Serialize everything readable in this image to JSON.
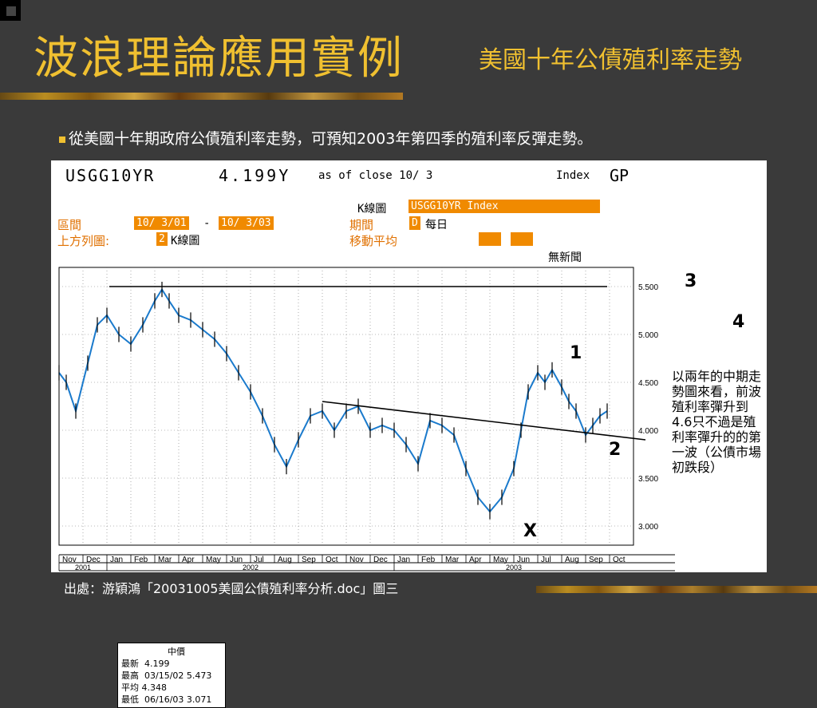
{
  "slide": {
    "title": "波浪理論應用實例",
    "subtitle": "美國十年公債殖利率走勢",
    "bullet": "從美國十年期政府公債殖利率走勢，可預知2003年第四季的殖利率反彈走勢。",
    "source": "出處：游穎鴻「20031005美國公債殖利率分析.doc」圖三",
    "accent_color": "#f0c030",
    "background_color": "#3a3a3a"
  },
  "terminal": {
    "ticker": "USGG10YR",
    "price": "4.199Y",
    "asof": "as of close 10/ 3",
    "index_label": "Index",
    "gp_label": "GP",
    "chart_kind_label": "K線圖",
    "security_field": "USGG10YR Index",
    "range_label": "區間",
    "range_from": "10/ 3/01",
    "range_dash": "-",
    "range_to": "10/ 3/03",
    "period_label": "期間",
    "period_code": "D",
    "period_text": "每日",
    "upper_label": "上方列圖:",
    "upper_num": "2",
    "upper_text": "K線圖",
    "ma_label": "移動平均",
    "news": "無新聞"
  },
  "legend": {
    "title": "中價",
    "rows": [
      {
        "k": "最新",
        "v": "4.199"
      },
      {
        "k": "最高",
        "v": "03/15/02 5.473"
      },
      {
        "k": "平均",
        "v": "4.348"
      },
      {
        "k": "最低",
        "v": "06/16/03 3.071"
      }
    ]
  },
  "annotation": "以兩年的中期走勢圖來看，前波殖利率彈升到4.6只不過是殖利率彈升的的第一波（公債市場初跌段）",
  "wave_labels": {
    "w1": "1",
    "w2": "2",
    "w3": "3",
    "w4": "4",
    "wx": "X"
  },
  "chart_data": {
    "type": "line",
    "title": "",
    "ylim": [
      2.8,
      5.7
    ],
    "yticks": [
      "5.500",
      "5.000",
      "4.500",
      "4.000",
      "3.500",
      "3.000"
    ],
    "ytick_values": [
      5.5,
      5.0,
      4.5,
      4.0,
      3.5,
      3.0
    ],
    "months": [
      "Nov",
      "Dec",
      "Jan",
      "Feb",
      "Mar",
      "Apr",
      "May",
      "Jun",
      "Jul",
      "Aug",
      "Sep",
      "Oct",
      "Nov",
      "Dec",
      "Jan",
      "Feb",
      "Mar",
      "Apr",
      "May",
      "Jun",
      "Jul",
      "Aug",
      "Sep",
      "Oct"
    ],
    "years": [
      "2001",
      "2002",
      "2003"
    ],
    "x": [
      0,
      0.3,
      0.7,
      1.2,
      1.6,
      2.0,
      2.5,
      3.0,
      3.5,
      4.0,
      4.3,
      4.6,
      5.0,
      5.5,
      6.0,
      6.5,
      7.0,
      7.5,
      8.0,
      8.5,
      9.0,
      9.5,
      10.0,
      10.5,
      11.0,
      11.5,
      12.0,
      12.5,
      13.0,
      13.5,
      14.0,
      14.5,
      15.0,
      15.5,
      16.0,
      16.5,
      17.0,
      17.5,
      18.0,
      18.5,
      19.0,
      19.3,
      19.6,
      20.0,
      20.3,
      20.6,
      21.0,
      21.3,
      21.6,
      22.0,
      22.3,
      22.6,
      22.9
    ],
    "series": [
      {
        "values": [
          4.6,
          4.5,
          4.2,
          4.7,
          5.1,
          5.2,
          5.0,
          4.9,
          5.1,
          5.35,
          5.47,
          5.35,
          5.2,
          5.15,
          5.05,
          4.95,
          4.8,
          4.6,
          4.4,
          4.15,
          3.85,
          3.62,
          3.9,
          4.15,
          4.2,
          4.0,
          4.2,
          4.25,
          4.0,
          4.05,
          4.0,
          3.85,
          3.65,
          4.1,
          4.05,
          3.95,
          3.6,
          3.3,
          3.15,
          3.3,
          3.6,
          4.0,
          4.4,
          4.6,
          4.5,
          4.63,
          4.45,
          4.3,
          4.2,
          3.95,
          4.05,
          4.15,
          4.2
        ]
      }
    ],
    "resistance_line": {
      "x": [
        2.1,
        22.9
      ],
      "y": [
        5.5,
        5.5
      ]
    },
    "trend_line": {
      "x": [
        11.0,
        24.5
      ],
      "y": [
        4.3,
        3.9
      ]
    },
    "grid": true
  }
}
